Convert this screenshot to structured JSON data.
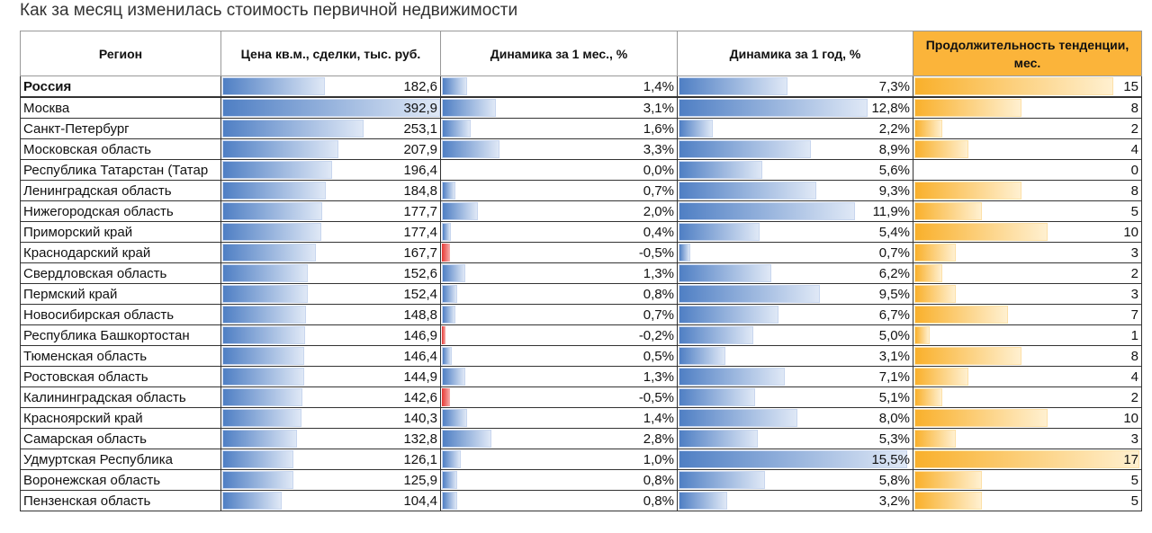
{
  "title": "Как за месяц изменилась стоимость первичной недвижимости",
  "headers": [
    "Регион",
    "Цена кв.м., сделки, тыс. руб.",
    "Динамика за 1 мес., %",
    "Динамика за 1 год, %",
    "Продолжительность тенденции, мес."
  ],
  "colors": {
    "bar_blue": "#4f7fc4",
    "bar_red": "#e53935",
    "bar_orange": "#f9b02b"
  },
  "rows": [
    {
      "region": "Россия",
      "price": "182,6",
      "m1": "1,4%",
      "y1": "7,3%",
      "dur": "15"
    },
    {
      "region": "Москва",
      "price": "392,9",
      "m1": "3,1%",
      "y1": "12,8%",
      "dur": "8"
    },
    {
      "region": "Санкт-Петербург",
      "price": "253,1",
      "m1": "1,6%",
      "y1": "2,2%",
      "dur": "2"
    },
    {
      "region": "Московская область",
      "price": "207,9",
      "m1": "3,3%",
      "y1": "8,9%",
      "dur": "4"
    },
    {
      "region": "Республика Татарстан (Татар",
      "price": "196,4",
      "m1": "0,0%",
      "y1": "5,6%",
      "dur": "0"
    },
    {
      "region": "Ленинградская область",
      "price": "184,8",
      "m1": "0,7%",
      "y1": "9,3%",
      "dur": "8"
    },
    {
      "region": "Нижегородская область",
      "price": "177,7",
      "m1": "2,0%",
      "y1": "11,9%",
      "dur": "5"
    },
    {
      "region": "Приморский край",
      "price": "177,4",
      "m1": "0,4%",
      "y1": "5,4%",
      "dur": "10"
    },
    {
      "region": "Краснодарский край",
      "price": "167,7",
      "m1": "-0,5%",
      "y1": "0,7%",
      "dur": "3"
    },
    {
      "region": "Свердловская область",
      "price": "152,6",
      "m1": "1,3%",
      "y1": "6,2%",
      "dur": "2"
    },
    {
      "region": "Пермский край",
      "price": "152,4",
      "m1": "0,8%",
      "y1": "9,5%",
      "dur": "3"
    },
    {
      "region": "Новосибирская область",
      "price": "148,8",
      "m1": "0,7%",
      "y1": "6,7%",
      "dur": "7"
    },
    {
      "region": "Республика Башкортостан",
      "price": "146,9",
      "m1": "-0,2%",
      "y1": "5,0%",
      "dur": "1"
    },
    {
      "region": "Тюменская область",
      "price": "146,4",
      "m1": "0,5%",
      "y1": "3,1%",
      "dur": "8"
    },
    {
      "region": "Ростовская область",
      "price": "144,9",
      "m1": "1,3%",
      "y1": "7,1%",
      "dur": "4"
    },
    {
      "region": "Калининградская область",
      "price": "142,6",
      "m1": "-0,5%",
      "y1": "5,1%",
      "dur": "2"
    },
    {
      "region": "Красноярский край",
      "price": "140,3",
      "m1": "1,4%",
      "y1": "8,0%",
      "dur": "10"
    },
    {
      "region": "Самарская область",
      "price": "132,8",
      "m1": "2,8%",
      "y1": "5,3%",
      "dur": "3"
    },
    {
      "region": "Удмуртская Республика",
      "price": "126,1",
      "m1": "1,0%",
      "y1": "15,5%",
      "dur": "17"
    },
    {
      "region": "Воронежская область",
      "price": "125,9",
      "m1": "0,8%",
      "y1": "5,8%",
      "dur": "5"
    },
    {
      "region": "Пензенская область",
      "price": "104,4",
      "m1": "0,8%",
      "y1": "3,2%",
      "dur": "5"
    }
  ]
}
